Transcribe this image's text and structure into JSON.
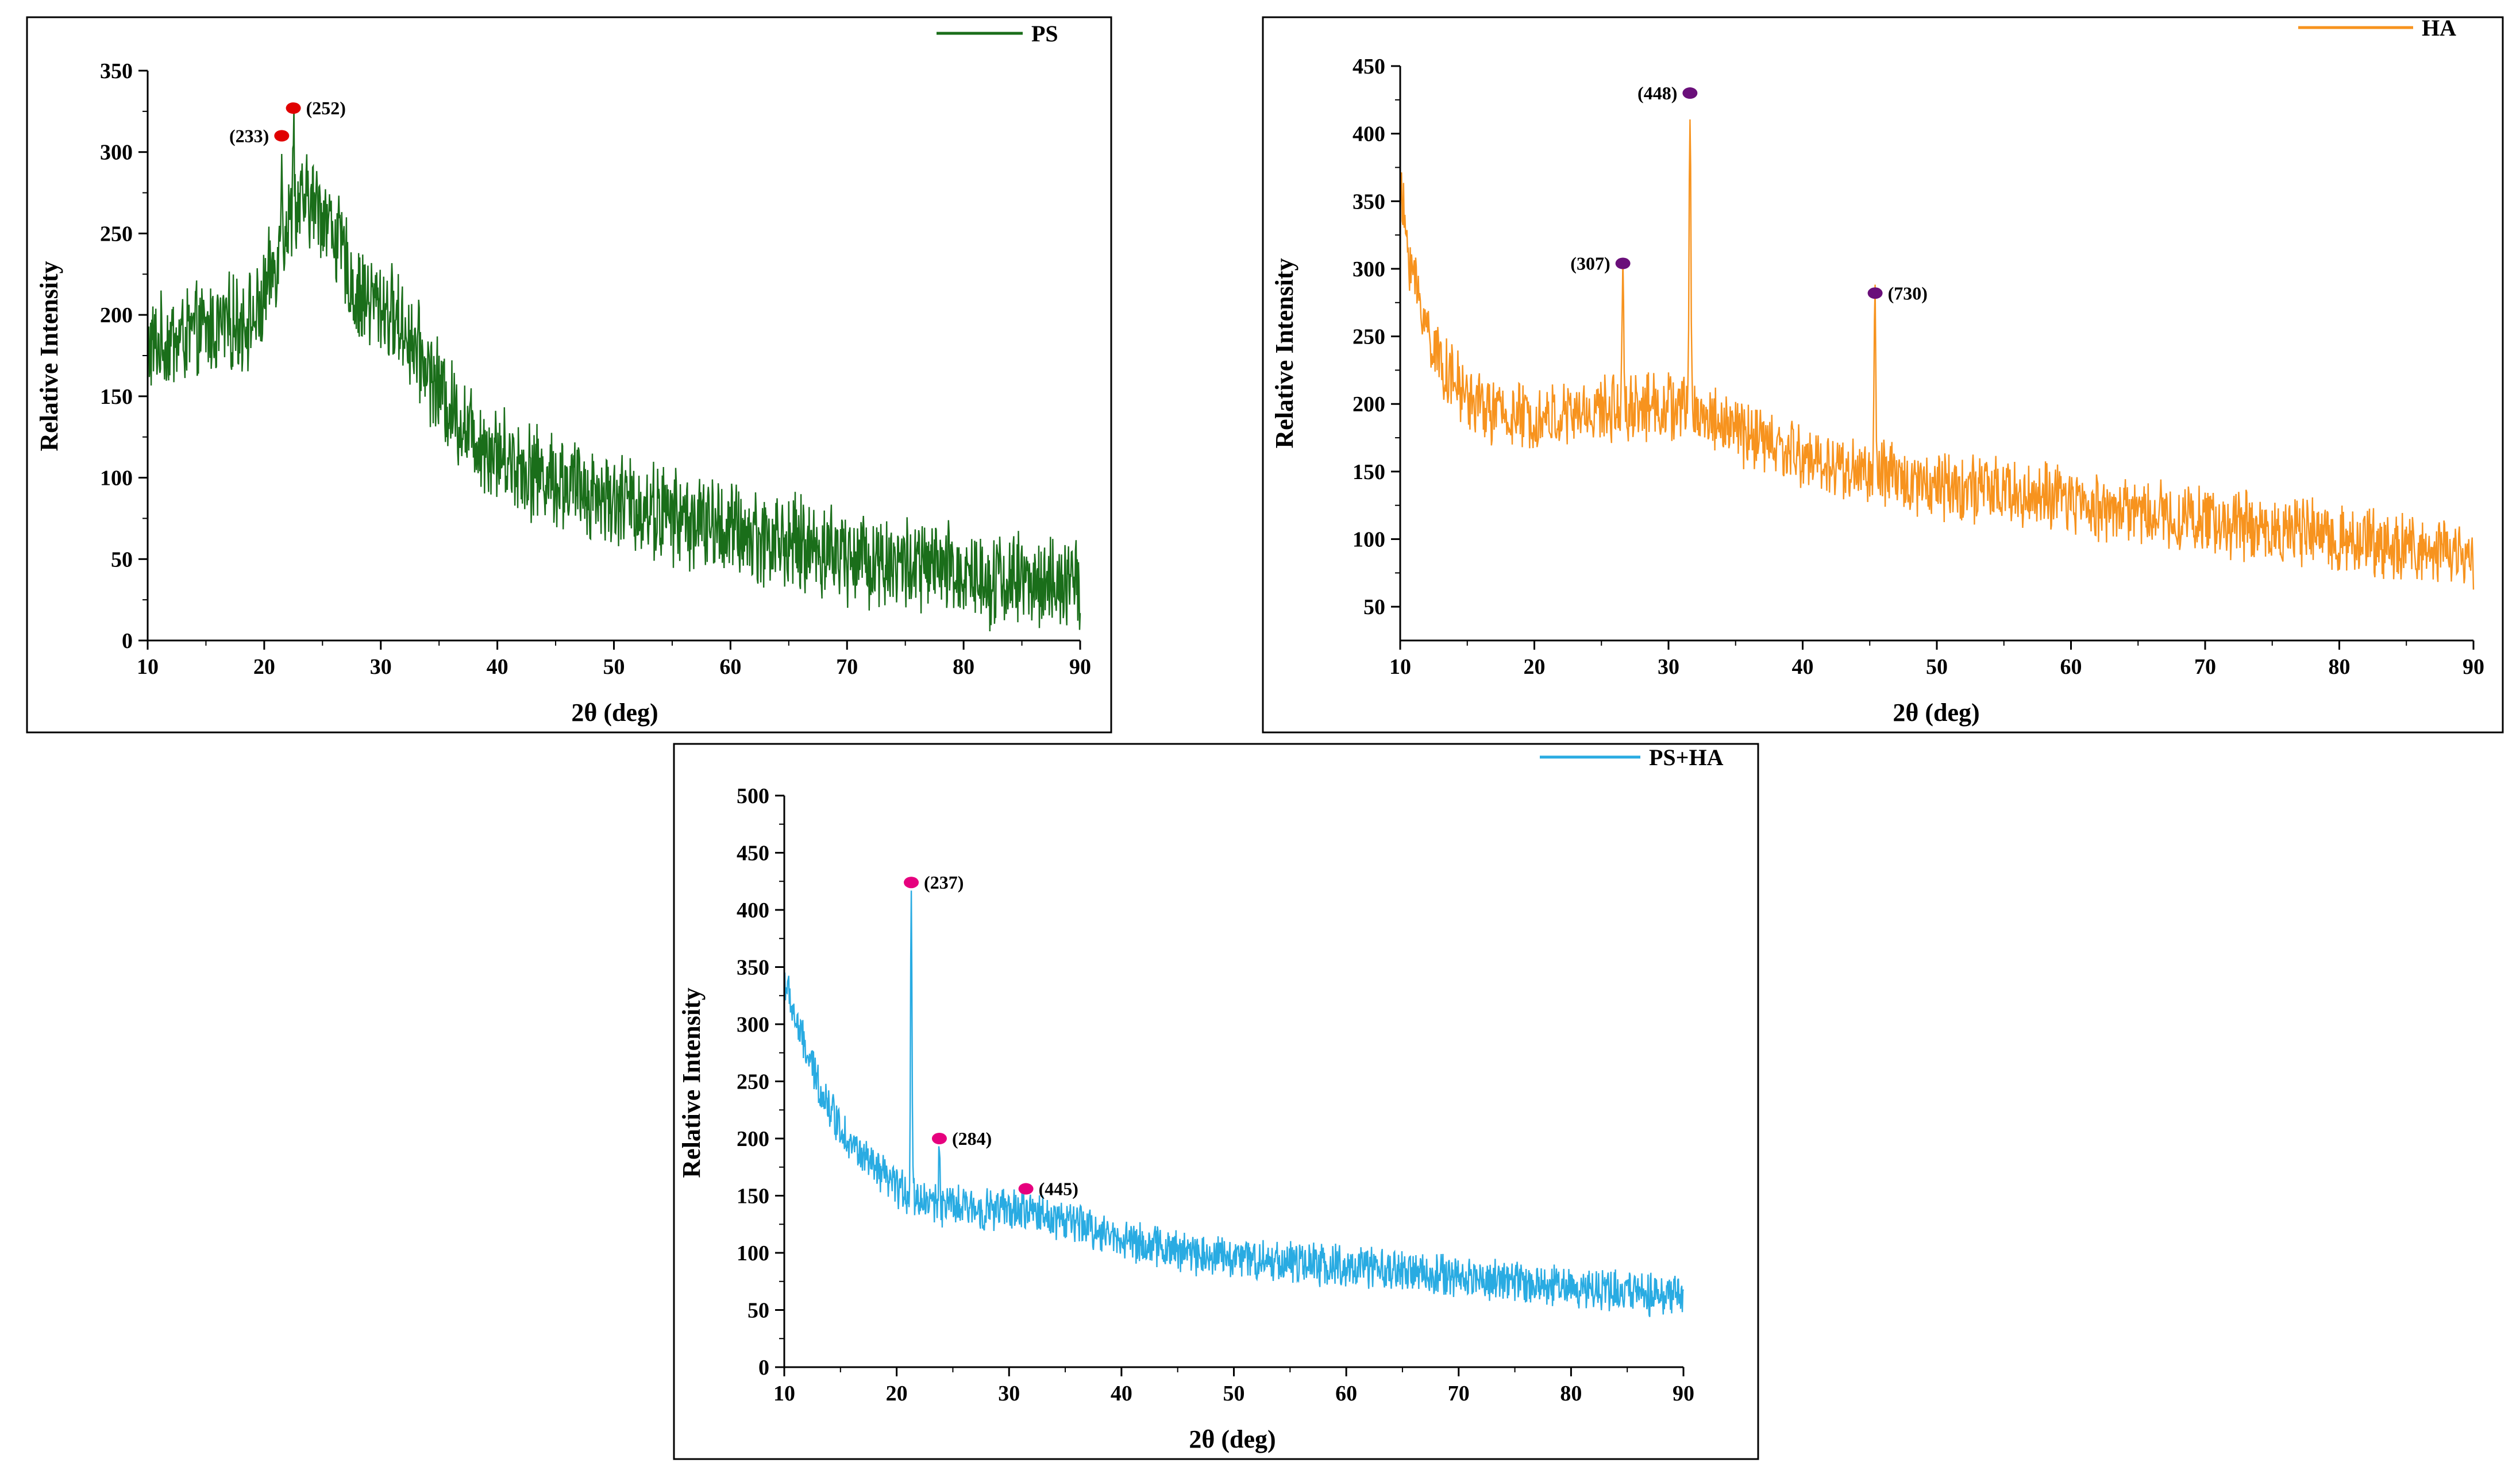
{
  "chart_data": [
    {
      "type": "line",
      "id": "ps",
      "series": [
        {
          "name": "PS",
          "color": "#1a6e1a"
        }
      ],
      "legend": "PS",
      "legend_position": "top-right",
      "xlabel": "2θ (deg)",
      "ylabel": "Relative Intensity",
      "xlim": [
        10,
        90
      ],
      "ylim": [
        0,
        350
      ],
      "xticks": [
        10,
        20,
        30,
        40,
        50,
        60,
        70,
        80,
        90
      ],
      "yticks": [
        0,
        50,
        100,
        150,
        200,
        250,
        300,
        350
      ],
      "peaks": [
        {
          "x": 21.5,
          "y": 310,
          "label": "(233)",
          "color": "#e00000",
          "side": "left"
        },
        {
          "x": 22.5,
          "y": 327,
          "label": "(252)",
          "color": "#e00000",
          "side": "right"
        }
      ]
    },
    {
      "type": "line",
      "id": "ha",
      "series": [
        {
          "name": "HA",
          "color": "#f7931e"
        }
      ],
      "legend": "HA",
      "legend_position": "top-right",
      "xlabel": "2θ (deg)",
      "ylabel": "Relative Intensity",
      "xlim": [
        10,
        90
      ],
      "ylim": [
        25,
        450
      ],
      "xticks": [
        10,
        20,
        30,
        40,
        50,
        60,
        70,
        80,
        90
      ],
      "yticks": [
        50,
        100,
        150,
        200,
        250,
        300,
        350,
        400,
        450
      ],
      "peaks": [
        {
          "x": 31.6,
          "y": 430,
          "label": "(448)",
          "color": "#6a0f7a",
          "side": "left"
        },
        {
          "x": 26.6,
          "y": 304,
          "label": "(307)",
          "color": "#6a0f7a",
          "side": "left"
        },
        {
          "x": 45.4,
          "y": 282,
          "label": "(730)",
          "color": "#6a0f7a",
          "side": "right"
        }
      ]
    },
    {
      "type": "line",
      "id": "psha",
      "series": [
        {
          "name": "PS+HA",
          "color": "#29abe2"
        }
      ],
      "legend": "PS+HA",
      "legend_position": "top-right",
      "xlabel": "2θ (deg)",
      "ylabel": "Relative Intensity",
      "xlim": [
        10,
        90
      ],
      "ylim": [
        0,
        500
      ],
      "xticks": [
        10,
        20,
        30,
        40,
        50,
        60,
        70,
        80,
        90
      ],
      "yticks": [
        0,
        50,
        100,
        150,
        200,
        250,
        300,
        350,
        400,
        450,
        500
      ],
      "peaks": [
        {
          "x": 21.3,
          "y": 424,
          "label": "(237)",
          "color": "#e6007e",
          "side": "right"
        },
        {
          "x": 23.8,
          "y": 200,
          "label": "(284)",
          "color": "#e6007e",
          "side": "right"
        },
        {
          "x": 31.5,
          "y": 156,
          "label": "(445)",
          "color": "#e6007e",
          "side": "right"
        }
      ]
    }
  ]
}
